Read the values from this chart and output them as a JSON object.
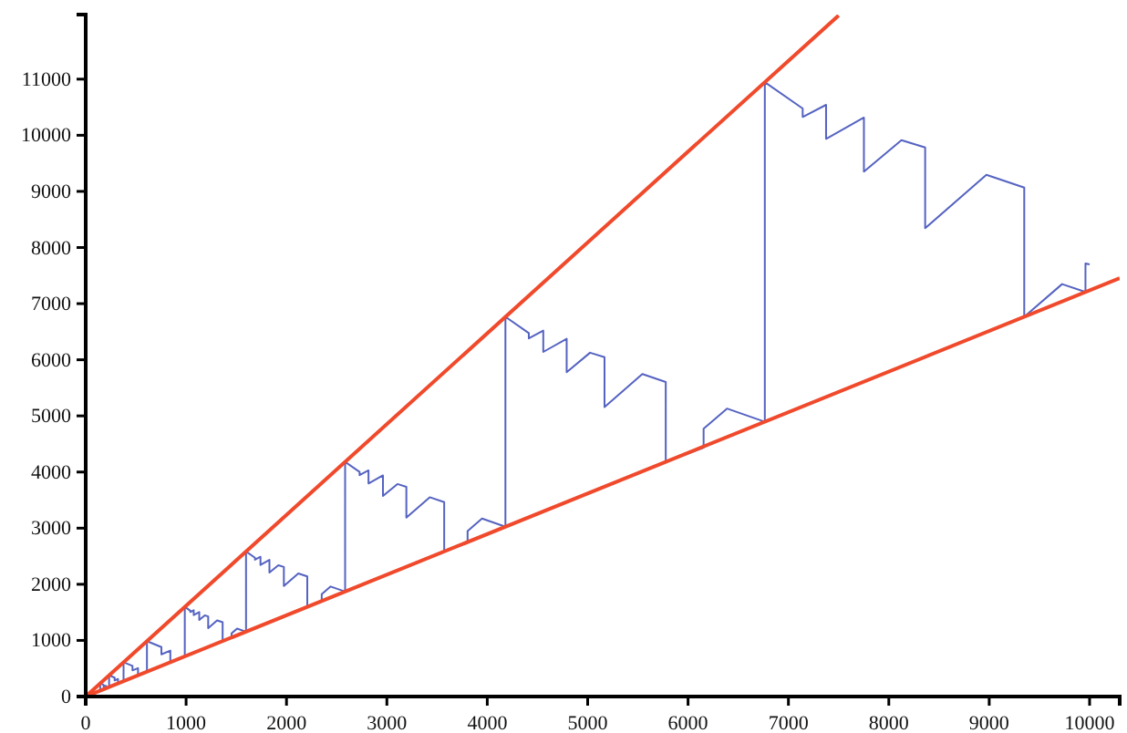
{
  "chart_data": {
    "type": "line",
    "xlim": [
      0,
      10300
    ],
    "ylim": [
      0,
      12150
    ],
    "xticks": [
      0,
      1000,
      2000,
      3000,
      4000,
      5000,
      6000,
      7000,
      8000,
      9000,
      10000
    ],
    "yticks": [
      0,
      1000,
      2000,
      3000,
      4000,
      5000,
      6000,
      7000,
      8000,
      9000,
      10000,
      11000
    ],
    "grid": false,
    "marker": "none",
    "line_style": "solid",
    "series": [
      {
        "color": "#5563c1",
        "x": [
          0,
          144,
          144,
          178,
          178,
          199,
          199,
          233,
          233,
          288,
          288,
          322,
          322,
          377,
          377,
          466,
          466,
          521,
          521,
          610,
          610,
          754,
          754,
          843,
          843,
          987,
          987,
          1042,
          1042,
          1076,
          1076,
          1131,
          1131,
          1186,
          1220,
          1220,
          1309,
          1364,
          1364,
          1453,
          1453,
          1508,
          1597,
          1597,
          1686,
          1686,
          1741,
          1741,
          1830,
          1830,
          1919,
          1974,
          1974,
          2118,
          2207,
          2207,
          2351,
          2351,
          2440,
          2584,
          2584,
          2728,
          2728,
          2817,
          2817,
          2961,
          2961,
          3105,
          3194,
          3194,
          3427,
          3571,
          3571,
          3804,
          3804,
          3948,
          4181,
          4181,
          4414,
          4414,
          4558,
          4558,
          4791,
          4791,
          5024,
          5168,
          5168,
          5545,
          5778,
          5778,
          6155,
          6155,
          6388,
          6765,
          6765,
          7142,
          7142,
          7375,
          7375,
          7752,
          7752,
          8126,
          8362,
          8362,
          8972,
          9349,
          9349,
          9726,
          9959,
          9959,
          10000
        ],
        "values": [
          0,
          104,
          233,
          208,
          178,
          193,
          144,
          169,
          377,
          337,
          287,
          312,
          233,
          273,
          610,
          545,
          465,
          505,
          377,
          441,
          987,
          882,
          752,
          818,
          610,
          714,
          1597,
          1529,
          1506,
          1539,
          1450,
          1505,
          1364,
          1446,
          1427,
          1217,
          1356,
          1323,
          987,
          1046,
          1126,
          1211,
          1156,
          2584,
          2473,
          2437,
          2490,
          2345,
          2435,
          2208,
          2340,
          2309,
          1970,
          2194,
          2141,
          1597,
          1693,
          1822,
          1960,
          1870,
          4181,
          4002,
          3944,
          4029,
          3795,
          3940,
          3572,
          3786,
          3736,
          3187,
          3551,
          3464,
          2584,
          2739,
          2948,
          3171,
          3025,
          6765,
          6475,
          6381,
          6520,
          6140,
          6375,
          5779,
          6126,
          6046,
          5157,
          5745,
          5604,
          4181,
          4432,
          4770,
          5130,
          4895,
          10946,
          10477,
          10325,
          10542,
          9935,
          10315,
          9351,
          9912,
          9782,
          8344,
          9296,
          9068,
          6765,
          7348,
          7208,
          7717,
          7700
        ]
      },
      {
        "color": "#f0492b",
        "x": [
          0,
          7500
        ],
        "values": [
          0,
          12135
        ]
      },
      {
        "color": "#f0492b",
        "x": [
          0,
          10300
        ],
        "values": [
          0,
          7453
        ]
      }
    ]
  }
}
